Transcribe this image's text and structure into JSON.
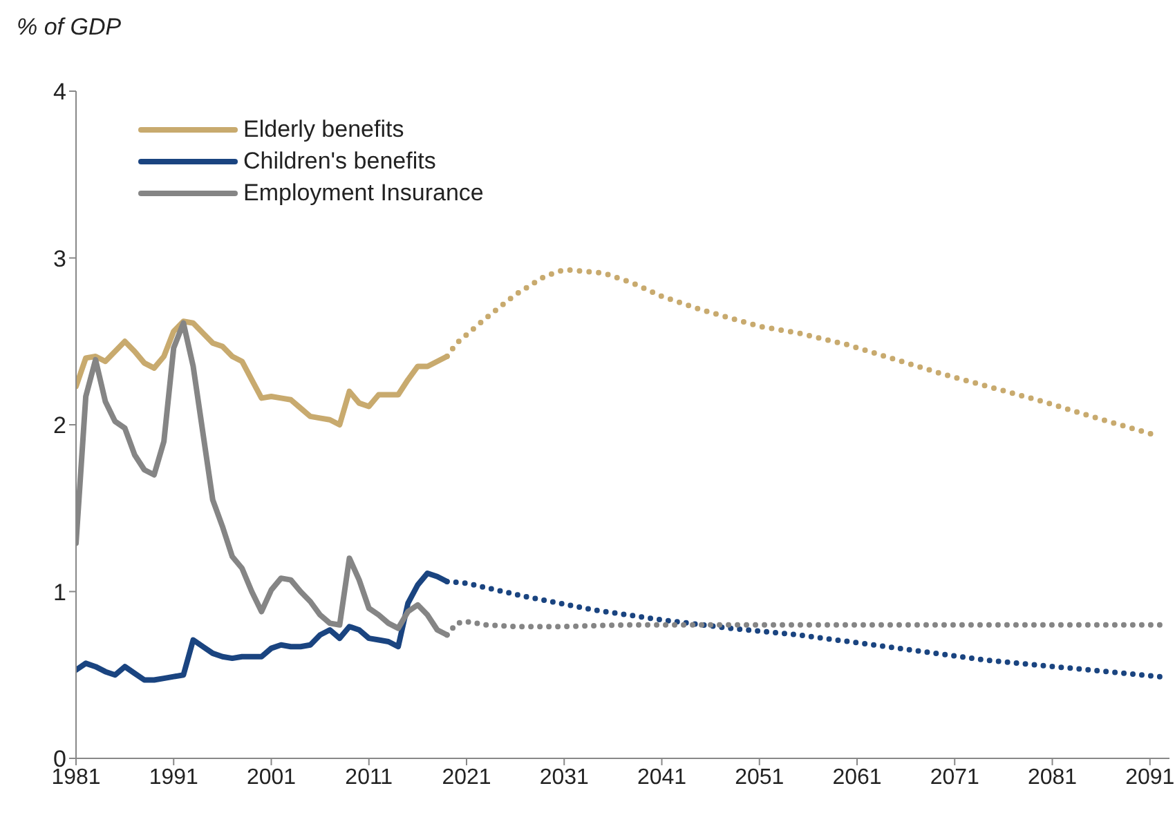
{
  "chart_data": {
    "type": "line",
    "ylabel": "% of GDP",
    "xlim": [
      1981,
      2093
    ],
    "xticks": [
      1981,
      1991,
      2001,
      2011,
      2021,
      2031,
      2041,
      2051,
      2061,
      2071,
      2081,
      2091
    ],
    "ylim": [
      0,
      4
    ],
    "yticks": [
      0,
      1,
      2,
      3,
      4
    ],
    "grid": false,
    "legend": "top left",
    "marker": "none",
    "series": [
      {
        "name": "Elderly benefits",
        "color": "#c8aa6e",
        "line_style": "solid",
        "x": [
          1981,
          1982,
          1983,
          1984,
          1985,
          1986,
          1987,
          1988,
          1989,
          1990,
          1991,
          1992,
          1993,
          1994,
          1995,
          1996,
          1997,
          1998,
          1999,
          2000,
          2001,
          2002,
          2003,
          2004,
          2005,
          2006,
          2007,
          2008,
          2009,
          2010,
          2011,
          2012,
          2013,
          2014,
          2015,
          2016,
          2017,
          2018,
          2019
        ],
        "values": [
          2.23,
          2.4,
          2.41,
          2.38,
          2.44,
          2.5,
          2.44,
          2.37,
          2.34,
          2.41,
          2.56,
          2.62,
          2.61,
          2.55,
          2.49,
          2.47,
          2.41,
          2.38,
          2.27,
          2.16,
          2.17,
          2.16,
          2.15,
          2.1,
          2.05,
          2.04,
          2.03,
          2.0,
          2.2,
          2.13,
          2.11,
          2.18,
          2.18,
          2.18,
          2.27,
          2.35,
          2.35,
          2.38,
          2.41
        ]
      },
      {
        "name": "Children's benefits",
        "color": "#1a4480",
        "line_style": "solid",
        "x": [
          1981,
          1982,
          1983,
          1984,
          1985,
          1986,
          1987,
          1988,
          1989,
          1990,
          1991,
          1992,
          1993,
          1994,
          1995,
          1996,
          1997,
          1998,
          1999,
          2000,
          2001,
          2002,
          2003,
          2004,
          2005,
          2006,
          2007,
          2008,
          2009,
          2010,
          2011,
          2012,
          2013,
          2014,
          2015,
          2016,
          2017,
          2018,
          2019
        ],
        "values": [
          0.53,
          0.57,
          0.55,
          0.52,
          0.5,
          0.55,
          0.51,
          0.47,
          0.47,
          0.48,
          0.49,
          0.5,
          0.71,
          0.67,
          0.63,
          0.61,
          0.6,
          0.61,
          0.61,
          0.61,
          0.66,
          0.68,
          0.67,
          0.67,
          0.68,
          0.74,
          0.77,
          0.72,
          0.79,
          0.77,
          0.72,
          0.71,
          0.7,
          0.67,
          0.93,
          1.04,
          1.11,
          1.09,
          1.06
        ]
      },
      {
        "name": "Employment Insurance",
        "color": "#858585",
        "line_style": "solid",
        "x": [
          1981,
          1982,
          1983,
          1984,
          1985,
          1986,
          1987,
          1988,
          1989,
          1990,
          1991,
          1992,
          1993,
          1994,
          1995,
          1996,
          1997,
          1998,
          1999,
          2000,
          2001,
          2002,
          2003,
          2004,
          2005,
          2006,
          2007,
          2008,
          2009,
          2010,
          2011,
          2012,
          2013,
          2014,
          2015,
          2016,
          2017,
          2018,
          2019
        ],
        "values": [
          1.29,
          2.17,
          2.39,
          2.14,
          2.02,
          1.98,
          1.82,
          1.73,
          1.7,
          1.9,
          2.46,
          2.61,
          2.35,
          1.95,
          1.55,
          1.39,
          1.21,
          1.14,
          1.0,
          0.88,
          1.01,
          1.08,
          1.07,
          1.0,
          0.94,
          0.86,
          0.81,
          0.8,
          1.2,
          1.07,
          0.9,
          0.86,
          0.81,
          0.78,
          0.88,
          0.92,
          0.86,
          0.77,
          0.74
        ]
      },
      {
        "color": "#c8aa6e",
        "line_style": "dotted",
        "x": [
          2019,
          2020,
          2023,
          2026,
          2029,
          2031,
          2035,
          2038,
          2041,
          2045,
          2048,
          2051,
          2055,
          2060,
          2065,
          2070,
          2075,
          2080,
          2085,
          2092
        ],
        "values": [
          2.41,
          2.49,
          2.64,
          2.78,
          2.89,
          2.93,
          2.91,
          2.85,
          2.77,
          2.69,
          2.64,
          2.59,
          2.55,
          2.48,
          2.39,
          2.3,
          2.22,
          2.14,
          2.05,
          1.93
        ]
      },
      {
        "color": "#1a4480",
        "line_style": "dotted",
        "x": [
          2019,
          2021,
          2027,
          2034,
          2041,
          2048,
          2055,
          2064,
          2074,
          2083,
          2092
        ],
        "values": [
          1.06,
          1.05,
          0.97,
          0.89,
          0.83,
          0.78,
          0.74,
          0.67,
          0.59,
          0.54,
          0.49
        ]
      },
      {
        "color": "#858585",
        "line_style": "dotted",
        "x": [
          2019,
          2020,
          2021,
          2023,
          2026,
          2031,
          2037,
          2092
        ],
        "values": [
          0.74,
          0.81,
          0.82,
          0.8,
          0.79,
          0.79,
          0.8,
          0.8
        ]
      }
    ]
  }
}
